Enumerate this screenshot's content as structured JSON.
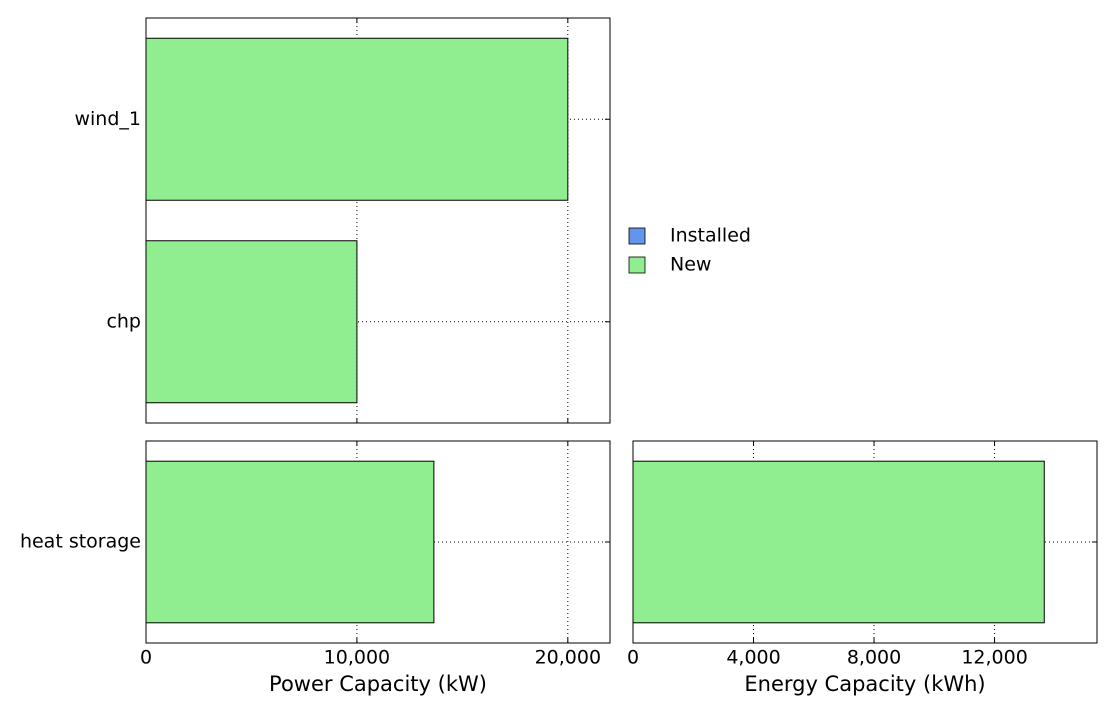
{
  "chart_data": [
    {
      "type": "bar",
      "orientation": "horizontal",
      "stacked": true,
      "categories": [
        "wind_1",
        "chp"
      ],
      "series": [
        {
          "name": "Installed",
          "color": "#6495ed",
          "values": [
            0,
            0
          ]
        },
        {
          "name": "New",
          "color": "#90ee90",
          "values": [
            20000,
            10000
          ]
        }
      ],
      "legend": "right",
      "grid": true
    },
    {
      "type": "bar",
      "orientation": "horizontal",
      "stacked": true,
      "categories": [
        "heat storage"
      ],
      "series": [
        {
          "color": "#6495ed",
          "values": [
            0
          ]
        },
        {
          "color": "#90ee90",
          "values": [
            13650
          ]
        }
      ],
      "xlabel": "Power Capacity (kW)",
      "xlim": [
        0,
        22000
      ],
      "xticks": [
        0,
        {
          "value": 10000,
          "label": "10,000"
        },
        {
          "value": 20000,
          "label": "20,000"
        }
      ],
      "grid": true
    },
    {
      "type": "bar",
      "orientation": "horizontal",
      "stacked": true,
      "categories": [
        null
      ],
      "series": [
        {
          "color": "#6495ed",
          "values": [
            0
          ]
        },
        {
          "color": "#90ee90",
          "values": [
            13650
          ]
        }
      ],
      "xlabel": "Energy Capacity (kWh)",
      "xlim": [
        0,
        15400
      ],
      "xticks": [
        0,
        {
          "value": 4000,
          "label": "4,000"
        },
        {
          "value": 8000,
          "label": "8,000"
        },
        {
          "value": 12000,
          "label": "12,000"
        }
      ],
      "grid": true
    }
  ]
}
